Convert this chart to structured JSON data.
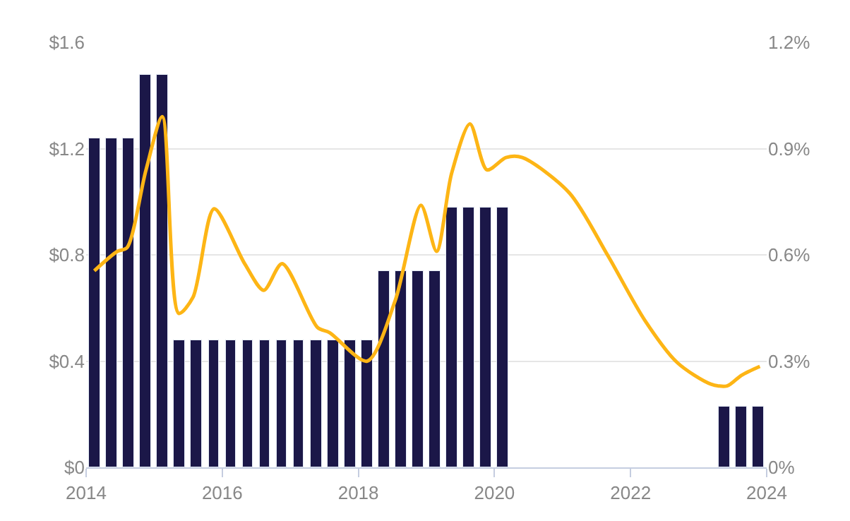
{
  "chart_data": {
    "type": "bar",
    "x": [
      2014.125,
      2014.375,
      2014.625,
      2014.875,
      2015.125,
      2015.375,
      2015.625,
      2015.875,
      2016.125,
      2016.375,
      2016.625,
      2016.875,
      2017.125,
      2017.375,
      2017.625,
      2017.875,
      2018.125,
      2018.375,
      2018.625,
      2018.875,
      2019.125,
      2019.375,
      2019.625,
      2019.875,
      2020.125,
      2023.375,
      2023.625,
      2023.875
    ],
    "series": [
      {
        "color": "#1b1748",
        "values": [
          1.24,
          1.24,
          1.24,
          1.48,
          1.48,
          0.48,
          0.48,
          0.48,
          0.48,
          0.48,
          0.48,
          0.48,
          0.48,
          0.48,
          0.48,
          0.48,
          0.48,
          0.74,
          0.74,
          0.74,
          0.74,
          0.98,
          0.98,
          0.98,
          0.98,
          0.23,
          0.23,
          0.23
        ]
      },
      {
        "type": "line",
        "axis": "y2",
        "color": "#fdb515",
        "x": [
          2014.12,
          2014.46,
          2014.6,
          2014.88,
          2015.12,
          2015.36,
          2015.57,
          2015.88,
          2016.33,
          2016.61,
          2016.88,
          2017.4,
          2017.58,
          2018.13,
          2018.54,
          2018.92,
          2019.15,
          2019.37,
          2019.64,
          2019.89,
          2020.17,
          2020.41,
          2021.1,
          2021.66,
          2022.21,
          2022.69,
          2023.18,
          2023.42,
          2023.63,
          2023.9
        ],
        "values": [
          0.555,
          0.61,
          0.62,
          0.84,
          0.99,
          0.435,
          0.48,
          0.73,
          0.575,
          0.5,
          0.575,
          0.395,
          0.38,
          0.3,
          0.47,
          0.74,
          0.61,
          0.83,
          0.97,
          0.84,
          0.875,
          0.875,
          0.775,
          0.6,
          0.415,
          0.295,
          0.235,
          0.23,
          0.26,
          0.285
        ]
      }
    ],
    "xlim": [
      2014,
      2024
    ],
    "xticks": [
      2014,
      2016,
      2018,
      2020,
      2022,
      2024
    ],
    "ylim": [
      0,
      1.6
    ],
    "yticks": [
      {
        "value": 0,
        "label": "$0"
      },
      {
        "value": 0.4,
        "label": "$0.4"
      },
      {
        "value": 0.8,
        "label": "$0.8"
      },
      {
        "value": 1.2,
        "label": "$1.2"
      },
      {
        "value": 1.6,
        "label": "$1.6"
      }
    ],
    "y2lim": [
      0,
      1.2
    ],
    "y2ticks": [
      {
        "value": 0,
        "label": "0%"
      },
      {
        "value": 0.3,
        "label": "0.3%"
      },
      {
        "value": 0.6,
        "label": "0.6%"
      },
      {
        "value": 0.9,
        "label": "0.9%"
      },
      {
        "value": 1.2,
        "label": "1.2%"
      }
    ],
    "grid": "y"
  }
}
